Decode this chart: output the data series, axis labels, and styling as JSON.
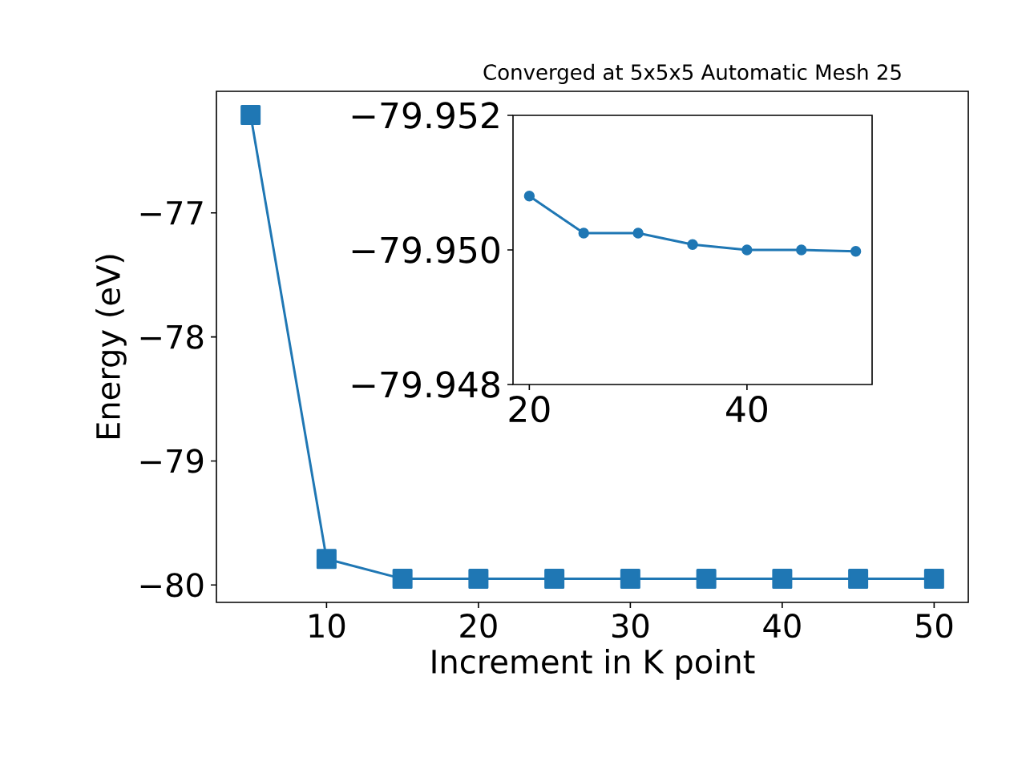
{
  "chart_data": [
    {
      "type": "line",
      "xlabel": "Increment in K point",
      "ylabel": "Energy (eV)",
      "marker": "square",
      "color": "#1f77b4",
      "x": [
        5,
        10,
        15,
        20,
        25,
        30,
        35,
        40,
        45,
        50
      ],
      "values": [
        -76.21,
        -79.79,
        -79.95,
        -79.95,
        -79.95,
        -79.95,
        -79.95,
        -79.95,
        -79.95,
        -79.95
      ],
      "xlim": [
        2.75,
        52.25
      ],
      "ylim": [
        -80.14,
        -76.02
      ],
      "xticks": [
        10,
        20,
        30,
        40,
        50
      ],
      "yticks": [
        {
          "value": -80,
          "label": "−80"
        },
        {
          "value": -79,
          "label": "−79"
        },
        {
          "value": -78,
          "label": "−78"
        },
        {
          "value": -77,
          "label": "−77"
        }
      ]
    },
    {
      "type": "line",
      "title": "Converged at 5x5x5 Automatic Mesh 25",
      "marker": "circle",
      "color": "#1f77b4",
      "x": [
        20,
        25,
        30,
        35,
        40,
        45,
        50
      ],
      "values": [
        -79.9508,
        -79.95025,
        -79.95025,
        -79.95008,
        -79.95,
        -79.95,
        -79.94998
      ],
      "xlim": [
        18.5,
        51.5
      ],
      "ylim": [
        -79.948,
        -79.952
      ],
      "xticks": [
        20,
        40
      ],
      "yticks": [
        {
          "value": -79.952,
          "label": "−79.952"
        },
        {
          "value": -79.95,
          "label": "−79.950"
        },
        {
          "value": -79.948,
          "label": "−79.948"
        }
      ]
    }
  ]
}
